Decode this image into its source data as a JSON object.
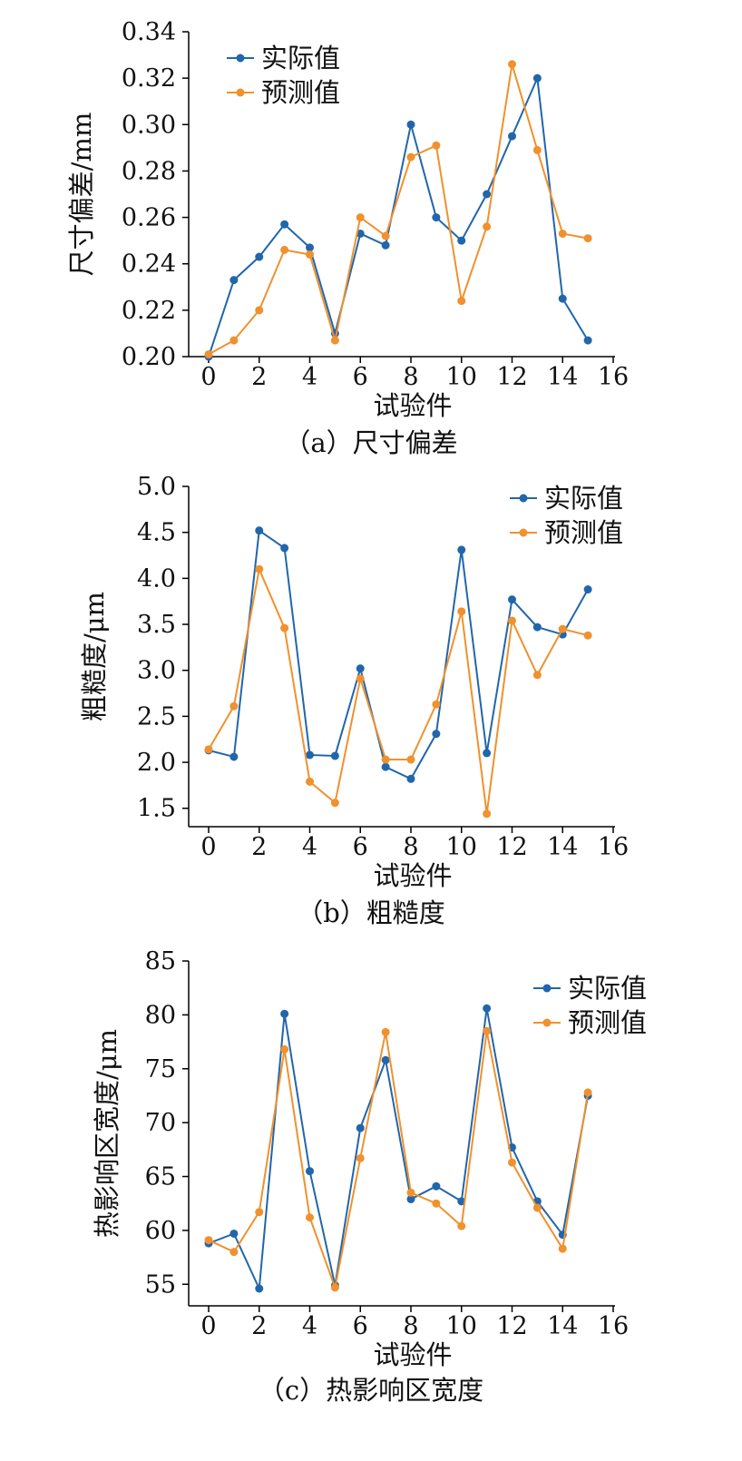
{
  "colors": {
    "actual": "#2166ac",
    "predicted": "#f0912d",
    "axis": "#000000"
  },
  "chart_data": [
    {
      "type": "line",
      "caption": "（a）尺寸偏差",
      "xlabel": "试验件",
      "ylabel": "尺寸偏差/mm",
      "xlim": [
        0,
        16
      ],
      "ylim": [
        0.2,
        0.34
      ],
      "xticks": [
        "0",
        "2",
        "4",
        "6",
        "8",
        "10",
        "12",
        "14",
        "16"
      ],
      "yticks": [
        "0.20",
        "0.22",
        "0.24",
        "0.26",
        "0.28",
        "0.30",
        "0.32",
        "0.34"
      ],
      "legend_position": "top-left",
      "x": [
        0,
        1,
        2,
        3,
        4,
        5,
        6,
        7,
        8,
        9,
        10,
        11,
        12,
        13,
        14,
        15
      ],
      "series": [
        {
          "name": "实际值",
          "values": [
            0.2,
            0.233,
            0.243,
            0.257,
            0.247,
            0.21,
            0.253,
            0.248,
            0.3,
            0.26,
            0.25,
            0.27,
            0.295,
            0.32,
            0.225,
            0.207
          ]
        },
        {
          "name": "预测值",
          "values": [
            0.201,
            0.207,
            0.22,
            0.246,
            0.244,
            0.207,
            0.26,
            0.252,
            0.286,
            0.291,
            0.224,
            0.256,
            0.326,
            0.289,
            0.253,
            0.251
          ]
        }
      ]
    },
    {
      "type": "line",
      "caption": "（b）粗糙度",
      "xlabel": "试验件",
      "ylabel": "粗糙度/μm",
      "xlim": [
        0,
        16
      ],
      "ylim": [
        1.3,
        5.0
      ],
      "xticks": [
        "0",
        "2",
        "4",
        "6",
        "8",
        "10",
        "12",
        "14",
        "16"
      ],
      "yticks": [
        "1.5",
        "2.0",
        "2.5",
        "3.0",
        "3.5",
        "4.0",
        "4.5",
        "5.0"
      ],
      "legend_position": "top-right",
      "x": [
        0,
        1,
        2,
        3,
        4,
        5,
        6,
        7,
        8,
        9,
        10,
        11,
        12,
        13,
        14,
        15
      ],
      "series": [
        {
          "name": "实际值",
          "values": [
            2.13,
            2.06,
            4.52,
            4.33,
            2.08,
            2.07,
            3.02,
            1.95,
            1.82,
            2.31,
            4.31,
            2.1,
            3.77,
            3.47,
            3.39,
            3.88
          ]
        },
        {
          "name": "预测值",
          "values": [
            2.14,
            2.61,
            4.1,
            3.46,
            1.79,
            1.56,
            2.91,
            2.03,
            2.03,
            2.63,
            3.64,
            1.44,
            3.54,
            2.95,
            3.45,
            3.38
          ]
        }
      ]
    },
    {
      "type": "line",
      "caption": "（c）热影响区宽度",
      "xlabel": "试验件",
      "ylabel": "热影响区宽度/μm",
      "xlim": [
        0,
        16
      ],
      "ylim": [
        53,
        85
      ],
      "xticks": [
        "0",
        "2",
        "4",
        "6",
        "8",
        "10",
        "12",
        "14",
        "16"
      ],
      "yticks": [
        "55",
        "60",
        "65",
        "70",
        "75",
        "80",
        "85"
      ],
      "legend_position": "top-right",
      "x": [
        0,
        1,
        2,
        3,
        4,
        5,
        6,
        7,
        8,
        9,
        10,
        11,
        12,
        13,
        14,
        15
      ],
      "series": [
        {
          "name": "实际值",
          "values": [
            58.8,
            59.7,
            54.6,
            80.1,
            65.5,
            54.9,
            69.5,
            75.8,
            62.9,
            64.1,
            62.7,
            80.6,
            67.7,
            62.7,
            59.6,
            72.5
          ]
        },
        {
          "name": "预测值",
          "values": [
            59.1,
            58.0,
            61.7,
            76.8,
            61.2,
            54.7,
            66.7,
            78.4,
            63.5,
            62.5,
            60.4,
            78.5,
            66.3,
            62.1,
            58.3,
            72.8
          ]
        }
      ]
    }
  ]
}
